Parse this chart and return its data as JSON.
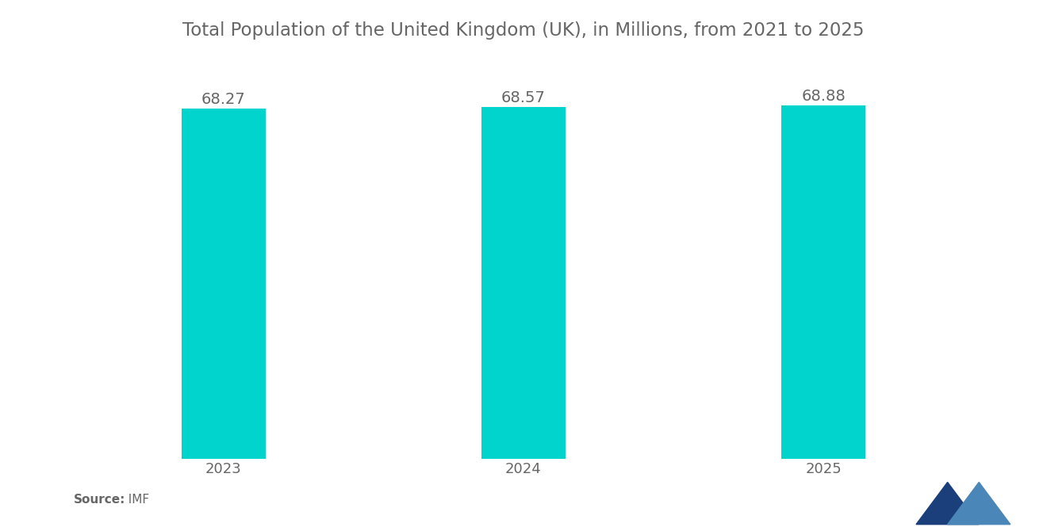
{
  "title": "Total Population of the United Kingdom (UK), in Millions, from 2021 to 2025",
  "categories": [
    "2023",
    "2024",
    "2025"
  ],
  "values": [
    68.27,
    68.57,
    68.88
  ],
  "bar_color": "#00D4CC",
  "value_labels": [
    "68.27",
    "68.57",
    "68.88"
  ],
  "source_label": "Source:",
  "source_value": "  IMF",
  "ylim_min": 0,
  "ylim_max": 75,
  "bar_width": 0.28,
  "title_fontsize": 16.5,
  "label_fontsize": 14,
  "tick_fontsize": 13,
  "background_color": "#ffffff",
  "text_color": "#666666",
  "logo_color1": "#1B3F7A",
  "logo_color2": "#4A86B8"
}
